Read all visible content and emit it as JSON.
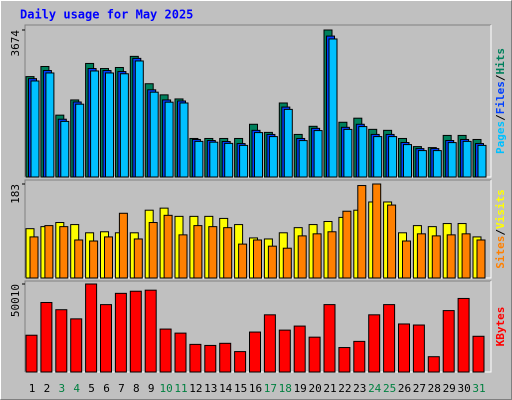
{
  "chart_data": {
    "type": "bar",
    "title": "Daily usage for May 2025",
    "separator": "/",
    "categories": [
      "1",
      "2",
      "3",
      "4",
      "5",
      "6",
      "7",
      "8",
      "9",
      "10",
      "11",
      "12",
      "13",
      "14",
      "15",
      "16",
      "17",
      "18",
      "19",
      "20",
      "21",
      "22",
      "23",
      "24",
      "25",
      "26",
      "27",
      "28",
      "29",
      "30",
      "31"
    ],
    "category_colors": [
      "#000000",
      "#000000",
      "#008040",
      "#008040",
      "#000000",
      "#000000",
      "#000000",
      "#000000",
      "#000000",
      "#008040",
      "#008040",
      "#000000",
      "#000000",
      "#000000",
      "#000000",
      "#000000",
      "#008040",
      "#008040",
      "#000000",
      "#000000",
      "#000000",
      "#000000",
      "#000000",
      "#008040",
      "#008040",
      "#000000",
      "#000000",
      "#000000",
      "#000000",
      "#000000",
      "#008040"
    ],
    "panels": [
      {
        "ylim": [
          0,
          3674
        ],
        "yticks": [
          3674
        ],
        "series": [
          {
            "name": "Hits",
            "color": "#00805c",
            "values": [
              2509,
              2762,
              1546,
              1926,
              2838,
              2711,
              2737,
              3015,
              2331,
              2053,
              1951,
              963,
              963,
              963,
              963,
              1318,
              1115,
              1850,
              1064,
              1267,
              3674,
              1368,
              1470,
              1191,
              1166,
              963,
              760,
              735,
              1039,
              1039,
              938
            ]
          },
          {
            "name": "Files",
            "color": "#0040ff",
            "values": [
              2458,
              2661,
              1444,
              1875,
              2711,
              2661,
              2635,
              2965,
              2179,
              1926,
              1900,
              938,
              912,
              887,
              836,
              1166,
              1064,
              1748,
              963,
              1216,
              3522,
              1242,
              1318,
              1064,
              1064,
              862,
              710,
              710,
              912,
              938,
              836
            ]
          },
          {
            "name": "Pages",
            "color": "#00c0ff",
            "values": [
              2400,
              2600,
              1390,
              1820,
              2650,
              2600,
              2580,
              2900,
              2120,
              1870,
              1850,
              890,
              870,
              840,
              790,
              1110,
              1010,
              1690,
              910,
              1160,
              3450,
              1190,
              1260,
              1010,
              1010,
              810,
              660,
              660,
              860,
              890,
              790
            ]
          }
        ]
      },
      {
        "ylim": [
          0,
          183
        ],
        "yticks": [
          183
        ],
        "series": [
          {
            "name": "Visits",
            "color": "#ffff00",
            "values": [
              96,
              100,
              108,
              104,
              88,
              90,
              88,
              88,
              132,
              136,
              120,
              120,
              120,
              116,
              104,
              78,
              76,
              88,
              98,
              104,
              110,
              118,
              132,
              148,
              148,
              88,
              102,
              100,
              106,
              106,
              80
            ]
          },
          {
            "name": "Sites",
            "color": "#ff8000",
            "values": [
              80,
              102,
              100,
              74,
              72,
              80,
              126,
              76,
              108,
              122,
              84,
              102,
              100,
              98,
              66,
              74,
              62,
              58,
              82,
              86,
              90,
              130,
              180,
              183,
              142,
              72,
              86,
              82,
              84,
              86,
              74
            ]
          }
        ]
      },
      {
        "ylim": [
          0,
          50010
        ],
        "yticks": [
          50010
        ],
        "series": [
          {
            "name": "KBytes",
            "color": "#ff0000",
            "values": [
              20900,
              39500,
              35400,
              30200,
              50010,
              38300,
              44700,
              45900,
              46500,
              24400,
              22100,
              15700,
              15100,
              16300,
              11600,
              22700,
              32500,
              23800,
              26100,
              19800,
              38300,
              13900,
              17400,
              32500,
              38300,
              27300,
              26700,
              8700,
              34900,
              41800,
              20300
            ]
          }
        ]
      }
    ]
  }
}
